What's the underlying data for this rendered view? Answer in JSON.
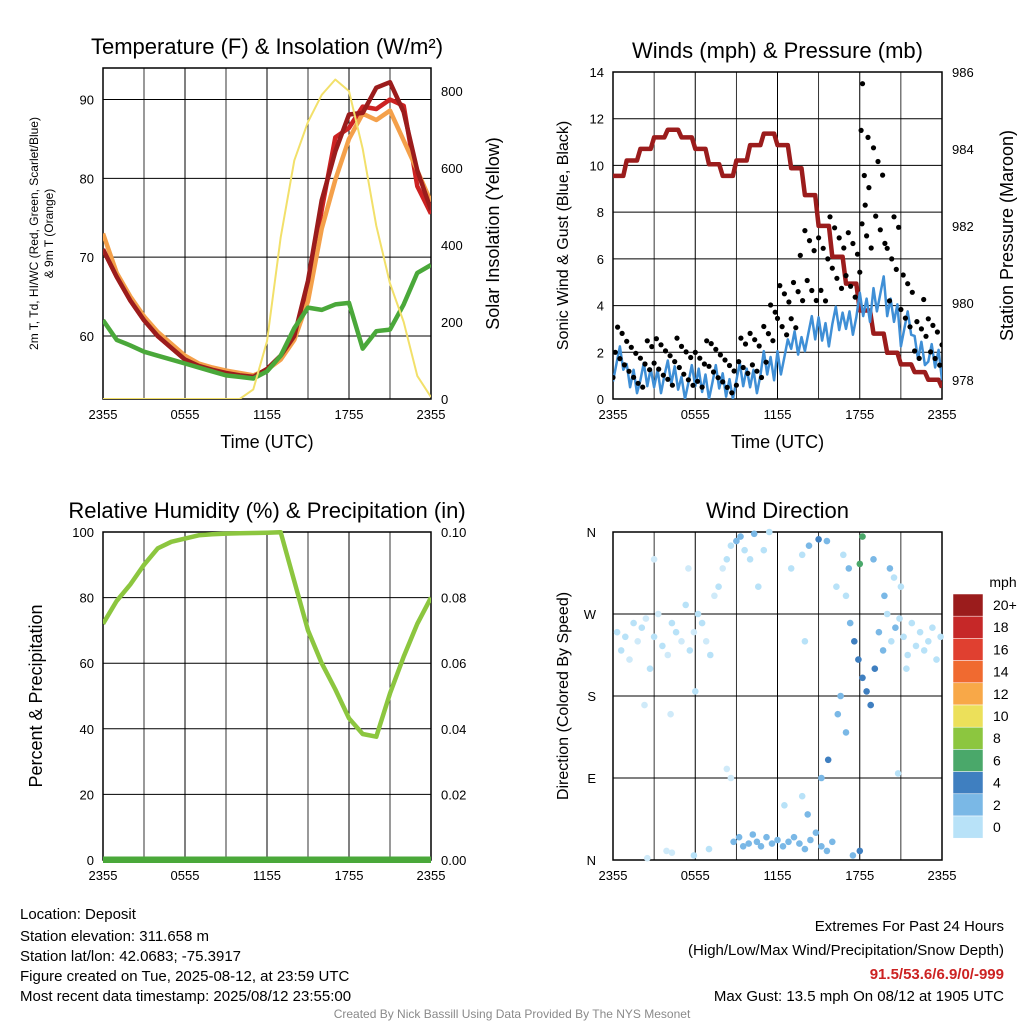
{
  "chart_data": [
    {
      "type": "line",
      "title": "Temperature (F) & Insolation (W/m²)",
      "xlabel": "Time (UTC)",
      "ylabel": "2m T, Td, HI/WC (Red, Green, Scarlet/Blue) & 9m T (Orange)",
      "y2label": "Solar Insolation (Yellow)",
      "x_ticks": [
        "2355",
        "0555",
        "1155",
        "1755",
        "2355"
      ],
      "y_ticks": [
        60,
        70,
        80,
        90
      ],
      "y2_ticks": [
        0,
        200,
        400,
        600,
        800
      ],
      "ylim": [
        52,
        94
      ],
      "y2lim": [
        0,
        860
      ],
      "grid": true,
      "x": [
        0,
        1,
        2,
        3,
        4,
        5,
        6,
        7,
        8,
        9,
        10,
        11,
        12,
        13,
        14,
        15,
        16,
        17,
        18,
        19,
        20,
        21,
        22,
        23,
        24
      ],
      "series": [
        {
          "color": "#cc2222",
          "values": [
            71,
            67.5,
            64.5,
            62,
            60,
            58.5,
            57,
            56.2,
            55.7,
            55.3,
            55,
            54.8,
            55.8,
            57.5,
            60,
            67,
            76,
            84,
            87,
            88.5,
            90,
            90,
            88,
            79,
            75.5
          ]
        },
        {
          "color": "#f4a04a",
          "values": [
            73,
            68,
            65,
            62.5,
            60.5,
            59,
            57.5,
            56.5,
            56,
            55.6,
            55.3,
            55,
            55.7,
            57,
            59.5,
            65,
            73,
            81,
            85,
            87,
            88,
            88,
            86,
            81,
            77
          ]
        },
        {
          "color": "#9b1c1c",
          "values": [
            71,
            67.5,
            64.5,
            62,
            60,
            58.5,
            57,
            56.2,
            55.7,
            55.3,
            55,
            54.8,
            55.8,
            57.5,
            60,
            67,
            76,
            84,
            87.5,
            89.5,
            91.5,
            91,
            89,
            81,
            76
          ]
        },
        {
          "color": "#4aa83a",
          "values": [
            62,
            59.5,
            58.8,
            58,
            57.5,
            57,
            56.5,
            56,
            55.5,
            55,
            54.8,
            54.6,
            55.5,
            57.5,
            61,
            63,
            64.5,
            64,
            63,
            59,
            60,
            62,
            64,
            68,
            69
          ]
        },
        {
          "axis": "y2",
          "color": "#f2e06a",
          "values": [
            0,
            0,
            0,
            0,
            0,
            0,
            0,
            0,
            0,
            0,
            0,
            25,
            150,
            420,
            620,
            720,
            790,
            830,
            800,
            650,
            450,
            300,
            200,
            60,
            5
          ]
        }
      ]
    },
    {
      "type": "line",
      "title": "Winds (mph) & Pressure (mb)",
      "xlabel": "Time (UTC)",
      "ylabel": "Sonic Wind & Gust (Blue, Black)",
      "y2label": "Station Pressure (Maroon)",
      "x_ticks": [
        "2355",
        "0555",
        "1155",
        "1755",
        "2355"
      ],
      "y_ticks": [
        0,
        2,
        4,
        6,
        8,
        10,
        12,
        14
      ],
      "y2_ticks": [
        978,
        980,
        982,
        984,
        986
      ],
      "ylim": [
        0,
        14
      ],
      "y2lim": [
        977.5,
        986
      ],
      "grid": true,
      "x": [
        0,
        1,
        2,
        3,
        4,
        5,
        6,
        7,
        8,
        9,
        10,
        11,
        12,
        13,
        14,
        15,
        16,
        17,
        18,
        19,
        20,
        21,
        22,
        23,
        24
      ],
      "series": [
        {
          "axis": "y2",
          "color": "#9b1c1c",
          "values": [
            983.3,
            983.7,
            984.0,
            984.3,
            984.5,
            984.3,
            984.0,
            983.6,
            983.3,
            983.7,
            984.1,
            984.4,
            984.1,
            983.5,
            982.8,
            982.0,
            981.2,
            980.5,
            979.8,
            979.2,
            978.7,
            978.4,
            978.2,
            978.0,
            977.8
          ]
        },
        {
          "color": "#3f8fd6",
          "values": [
            1.5,
            1.0,
            0.8,
            1.0,
            0.9,
            0.7,
            0.8,
            0.7,
            0.6,
            0.8,
            1.0,
            1.3,
            1.8,
            2.4,
            2.8,
            3.0,
            3.2,
            3.5,
            3.8,
            4.5,
            3.8,
            3.0,
            2.2,
            1.6,
            1.3
          ]
        },
        {
          "color": "#000000",
          "scatter": true,
          "values": [
            2.0,
            1.7,
            1.5,
            1.8,
            1.6,
            1.3,
            1.5,
            1.4,
            1.2,
            1.6,
            2.0,
            2.8,
            3.8,
            4.6,
            5.5,
            6.0,
            5.6,
            6.2,
            7.5,
            9.0,
            6.0,
            4.2,
            3.0,
            2.3,
            1.8
          ]
        }
      ],
      "extra_points": [
        [
          18.2,
          13.5
        ],
        [
          18.6,
          11.2
        ],
        [
          18.1,
          11.5
        ],
        [
          18.4,
          8.3
        ]
      ]
    },
    {
      "type": "line",
      "title": "Relative Humidity (%) & Precipitation (in)",
      "ylabel": "Percent & Precipitation",
      "x_ticks": [
        "2355",
        "0555",
        "1155",
        "1755",
        "2355"
      ],
      "y_ticks": [
        0,
        20,
        40,
        60,
        80,
        100
      ],
      "y2_ticks": [
        "0.00",
        "0.02",
        "0.04",
        "0.06",
        "0.08",
        "0.10"
      ],
      "ylim": [
        0,
        100
      ],
      "y2lim": [
        0,
        0.1
      ],
      "grid": true,
      "x": [
        0,
        1,
        2,
        3,
        4,
        5,
        6,
        7,
        8,
        9,
        10,
        11,
        12,
        13,
        14,
        15,
        16,
        17,
        18,
        19,
        20,
        21,
        22,
        23,
        24
      ],
      "series": [
        {
          "color": "#8cc63f",
          "values": [
            72,
            79,
            84,
            90,
            95,
            97,
            98,
            99,
            99.3,
            99.5,
            99.6,
            99.7,
            99.8,
            99.9,
            85,
            70,
            60,
            52,
            42,
            36,
            40,
            52,
            62,
            72,
            80
          ]
        },
        {
          "axis": "y2",
          "color": "#4aa83a",
          "values": [
            0,
            0,
            0,
            0,
            0,
            0,
            0,
            0,
            0,
            0,
            0,
            0,
            0,
            0,
            0,
            0,
            0,
            0,
            0,
            0,
            0,
            0,
            0,
            0,
            0
          ]
        }
      ]
    },
    {
      "type": "scatter",
      "title": "Wind Direction",
      "ylabel": "Direction (Colored By Speed)",
      "x_ticks": [
        "2355",
        "0555",
        "1155",
        "1755",
        "2355"
      ],
      "y_ticks": [
        "N",
        "E",
        "S",
        "W",
        "N"
      ],
      "xlim": [
        0,
        24
      ],
      "ylim": [
        0,
        360
      ],
      "grid": true,
      "colorbar": {
        "unit": "mph",
        "labels": [
          "20+",
          "18",
          "16",
          "14",
          "12",
          "10",
          "8",
          "6",
          "4",
          "2",
          "0"
        ],
        "colors": [
          "#9b1c1c",
          "#c62828",
          "#e04030",
          "#f06a30",
          "#f8a848",
          "#ece05a",
          "#8cc63f",
          "#4aa86a",
          "#3f7fc0",
          "#7ab8e6",
          "#b8e2f8"
        ]
      },
      "points": [
        [
          0.3,
          250,
          1
        ],
        [
          0.6,
          230,
          1
        ],
        [
          0.9,
          245,
          1
        ],
        [
          1.2,
          220,
          0
        ],
        [
          1.5,
          260,
          1
        ],
        [
          1.8,
          240,
          0
        ],
        [
          2.1,
          255,
          1
        ],
        [
          2.4,
          265,
          0
        ],
        [
          2.7,
          210,
          1
        ],
        [
          3.0,
          245,
          1
        ],
        [
          3.3,
          270,
          0
        ],
        [
          3.6,
          235,
          1
        ],
        [
          4.0,
          225,
          0
        ],
        [
          4.3,
          260,
          1
        ],
        [
          4.6,
          250,
          1
        ],
        [
          5.0,
          240,
          0
        ],
        [
          5.3,
          280,
          1
        ],
        [
          5.6,
          230,
          1
        ],
        [
          5.9,
          250,
          0
        ],
        [
          6.2,
          270,
          1
        ],
        [
          6.5,
          260,
          1
        ],
        [
          6.8,
          240,
          0
        ],
        [
          7.1,
          225,
          1
        ],
        [
          7.4,
          290,
          0
        ],
        [
          7.7,
          300,
          1
        ],
        [
          8.0,
          320,
          0
        ],
        [
          8.3,
          330,
          1
        ],
        [
          8.6,
          345,
          1
        ],
        [
          9.0,
          350,
          2
        ],
        [
          9.3,
          355,
          2
        ],
        [
          9.6,
          340,
          1
        ],
        [
          10.0,
          330,
          1
        ],
        [
          10.3,
          358,
          2
        ],
        [
          10.6,
          300,
          1
        ],
        [
          11.0,
          340,
          1
        ],
        [
          11.4,
          360,
          1
        ],
        [
          3.0,
          330,
          0
        ],
        [
          5.5,
          320,
          0
        ],
        [
          6.0,
          185,
          1
        ],
        [
          2.3,
          170,
          0
        ],
        [
          4.2,
          160,
          0
        ],
        [
          8.3,
          100,
          0
        ],
        [
          8.6,
          90,
          0
        ],
        [
          8.8,
          20,
          2
        ],
        [
          9.2,
          25,
          2
        ],
        [
          9.5,
          15,
          2
        ],
        [
          9.9,
          18,
          2
        ],
        [
          10.2,
          28,
          2
        ],
        [
          10.5,
          20,
          2
        ],
        [
          10.8,
          15,
          2
        ],
        [
          11.2,
          25,
          2
        ],
        [
          11.6,
          18,
          2
        ],
        [
          12.0,
          22,
          2
        ],
        [
          12.4,
          15,
          2
        ],
        [
          12.8,
          20,
          2
        ],
        [
          13.2,
          25,
          2
        ],
        [
          13.6,
          18,
          2
        ],
        [
          14.0,
          12,
          2
        ],
        [
          14.4,
          22,
          2
        ],
        [
          14.8,
          30,
          2
        ],
        [
          15.2,
          15,
          2
        ],
        [
          15.6,
          10,
          2
        ],
        [
          16.0,
          20,
          2
        ],
        [
          12.5,
          60,
          1
        ],
        [
          13.8,
          70,
          1
        ],
        [
          14.2,
          50,
          2
        ],
        [
          5.9,
          5,
          1
        ],
        [
          7.0,
          12,
          1
        ],
        [
          2.5,
          2,
          0
        ],
        [
          4.3,
          8,
          0
        ],
        [
          3.9,
          10,
          0
        ],
        [
          18.0,
          10,
          3
        ],
        [
          17.5,
          5,
          2
        ],
        [
          18.2,
          355,
          6
        ],
        [
          18.0,
          325,
          6
        ],
        [
          17.2,
          320,
          2
        ],
        [
          16.8,
          335,
          1
        ],
        [
          15.6,
          350,
          2
        ],
        [
          15.0,
          352,
          3
        ],
        [
          14.3,
          345,
          2
        ],
        [
          13.8,
          335,
          1
        ],
        [
          13.0,
          320,
          1
        ],
        [
          16.3,
          300,
          1
        ],
        [
          17.0,
          290,
          1
        ],
        [
          17.3,
          260,
          2
        ],
        [
          17.6,
          240,
          3
        ],
        [
          17.9,
          220,
          3
        ],
        [
          18.2,
          200,
          3
        ],
        [
          18.5,
          185,
          3
        ],
        [
          18.8,
          170,
          3
        ],
        [
          19.1,
          210,
          3
        ],
        [
          19.4,
          250,
          2
        ],
        [
          19.7,
          230,
          2
        ],
        [
          20.0,
          270,
          1
        ],
        [
          20.3,
          240,
          1
        ],
        [
          20.6,
          255,
          2
        ],
        [
          20.9,
          265,
          1
        ],
        [
          21.2,
          245,
          1
        ],
        [
          21.5,
          225,
          1
        ],
        [
          21.8,
          260,
          1
        ],
        [
          22.1,
          235,
          1
        ],
        [
          22.4,
          250,
          1
        ],
        [
          22.7,
          230,
          1
        ],
        [
          23.0,
          240,
          1
        ],
        [
          23.3,
          255,
          1
        ],
        [
          23.6,
          220,
          1
        ],
        [
          23.9,
          245,
          1
        ],
        [
          21.0,
          300,
          1
        ],
        [
          20.5,
          310,
          1
        ],
        [
          19.8,
          290,
          2
        ],
        [
          20.2,
          320,
          2
        ],
        [
          19.0,
          330,
          2
        ],
        [
          21.4,
          210,
          1
        ],
        [
          20.8,
          95,
          1
        ],
        [
          17.0,
          140,
          2
        ],
        [
          16.4,
          160,
          2
        ],
        [
          15.7,
          110,
          3
        ],
        [
          15.2,
          90,
          2
        ],
        [
          16.6,
          180,
          2
        ],
        [
          14.0,
          240,
          1
        ]
      ]
    }
  ],
  "footer": {
    "location": "Location: Deposit",
    "elevation": "Station elevation: 311.658 m",
    "latlon": "Station lat/lon: 42.0683; -75.3917",
    "created": "Figure created on Tue, 2025-08-12, at 23:59 UTC",
    "recent": "Most recent data timestamp: 2025/08/12 23:55:00",
    "extremes_title": "Extremes For Past 24 Hours",
    "extremes_sub": "(High/Low/Max Wind/Precipitation/Snow Depth)",
    "extremes_values": "91.5/53.6/6.9/0/-999",
    "max_gust": "Max Gust: 13.5 mph On 08/12 at 1905 UTC",
    "credit": "Created By Nick Bassill Using Data Provided By The NYS Mesonet"
  }
}
